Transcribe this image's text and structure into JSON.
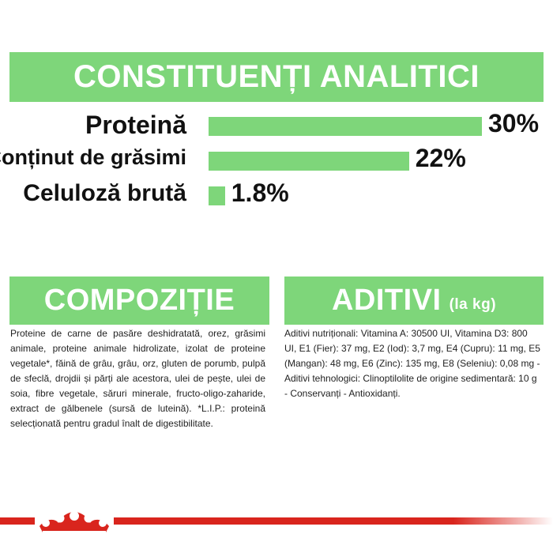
{
  "headings": {
    "analytics": "CONSTITUENȚI ANALITICI",
    "composition": "COMPOZIȚIE",
    "additives": "ADITIVI",
    "additives_sub": "(la kg)"
  },
  "chart_data": {
    "type": "bar",
    "orientation": "horizontal",
    "categories": [
      "Proteină",
      "Conținut de grăsimi",
      "Celuloză brută"
    ],
    "values": [
      30,
      22,
      1.8
    ],
    "value_labels": [
      "30%",
      "22%",
      "1.8%"
    ],
    "xlim": [
      0,
      30
    ],
    "grid": false,
    "colors": {
      "bar": "#7ed67a"
    }
  },
  "composition_text": "Proteine de carne de pasăre deshidratată, orez, grăsimi animale, proteine animale hidrolizate, izolat de proteine vegetale*, făină de grâu, grâu, orz, gluten de porumb, pulpă de sfeclă, drojdii și părți ale acestora, ulei de pește, ulei de soia, fibre vegetale, săruri minerale, fructo-oligo-zaharide, extract de gălbenele (sursă de luteină). *L.I.P.: proteină selecționată pentru gradul înalt de digestibilitate.",
  "additives_text": "Aditivi nutriționali: Vitamina A: 30500 UI, Vitamina D3: 800 UI, E1 (Fier): 37 mg, E2 (Iod): 3,7 mg, E4 (Cupru): 11 mg, E5 (Mangan): 48 mg, E6 (Zinc): 135 mg, E8 (Seleniu): 0,08 mg - Aditivi tehnologici: Clinoptilolite de origine sedimentară: 10 g - Conservanți - Antioxidanți.",
  "footer": {
    "logo_icon": "crown-icon",
    "colors": {
      "brand": "#d9251d",
      "accent": "#7ed67a"
    }
  }
}
